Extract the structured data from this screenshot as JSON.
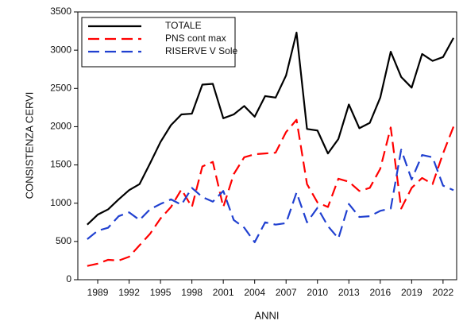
{
  "chart_data": {
    "type": "line",
    "x_label": "ANNI",
    "y_label": "CONSISTENZA CERVI",
    "x": [
      1988,
      1989,
      1990,
      1991,
      1992,
      1993,
      1994,
      1995,
      1996,
      1997,
      1998,
      1999,
      2000,
      2001,
      2002,
      2003,
      2004,
      2005,
      2006,
      2007,
      2008,
      2009,
      2010,
      2011,
      2012,
      2013,
      2014,
      2015,
      2016,
      2017,
      2018,
      2019,
      2020,
      2021,
      2022,
      2023
    ],
    "series": [
      {
        "name": "TOTALE",
        "color": "#000000",
        "style": "solid",
        "values": [
          720,
          850,
          920,
          1050,
          1170,
          1250,
          1520,
          1800,
          2020,
          2160,
          2170,
          2550,
          2560,
          2110,
          2160,
          2270,
          2130,
          2400,
          2380,
          2670,
          3230,
          1970,
          1950,
          1650,
          1840,
          2290,
          1980,
          2050,
          2380,
          2980,
          2650,
          2510,
          2950,
          2860,
          2910,
          3160
        ]
      },
      {
        "name": "PNS cont max",
        "color": "#ff0000",
        "style": "dashed",
        "values": [
          180,
          210,
          260,
          250,
          300,
          450,
          600,
          800,
          950,
          1180,
          950,
          1480,
          1540,
          950,
          1380,
          1600,
          1640,
          1650,
          1660,
          1930,
          2090,
          1250,
          1010,
          950,
          1320,
          1280,
          1160,
          1200,
          1450,
          1990,
          930,
          1200,
          1330,
          1250,
          1650,
          2000
        ]
      },
      {
        "name": "RISERVE V Sole",
        "color": "#2040d0",
        "style": "dashed",
        "values": [
          530,
          640,
          680,
          830,
          880,
          780,
          920,
          990,
          1050,
          980,
          1200,
          1080,
          1020,
          1160,
          780,
          680,
          490,
          750,
          720,
          740,
          1140,
          750,
          940,
          700,
          540,
          990,
          820,
          830,
          900,
          930,
          1700,
          1310,
          1630,
          1600,
          1230,
          1170
        ]
      }
    ],
    "xlim": [
      1987.1,
      2023.3
    ],
    "xticks": [
      1989,
      1992,
      1995,
      1998,
      2001,
      2004,
      2007,
      2010,
      2013,
      2016,
      2019,
      2022
    ],
    "ylim": [
      0,
      3500
    ],
    "yticks": [
      0,
      500,
      1000,
      1500,
      2000,
      2500,
      3000,
      3500
    ],
    "legend": "upper left"
  }
}
